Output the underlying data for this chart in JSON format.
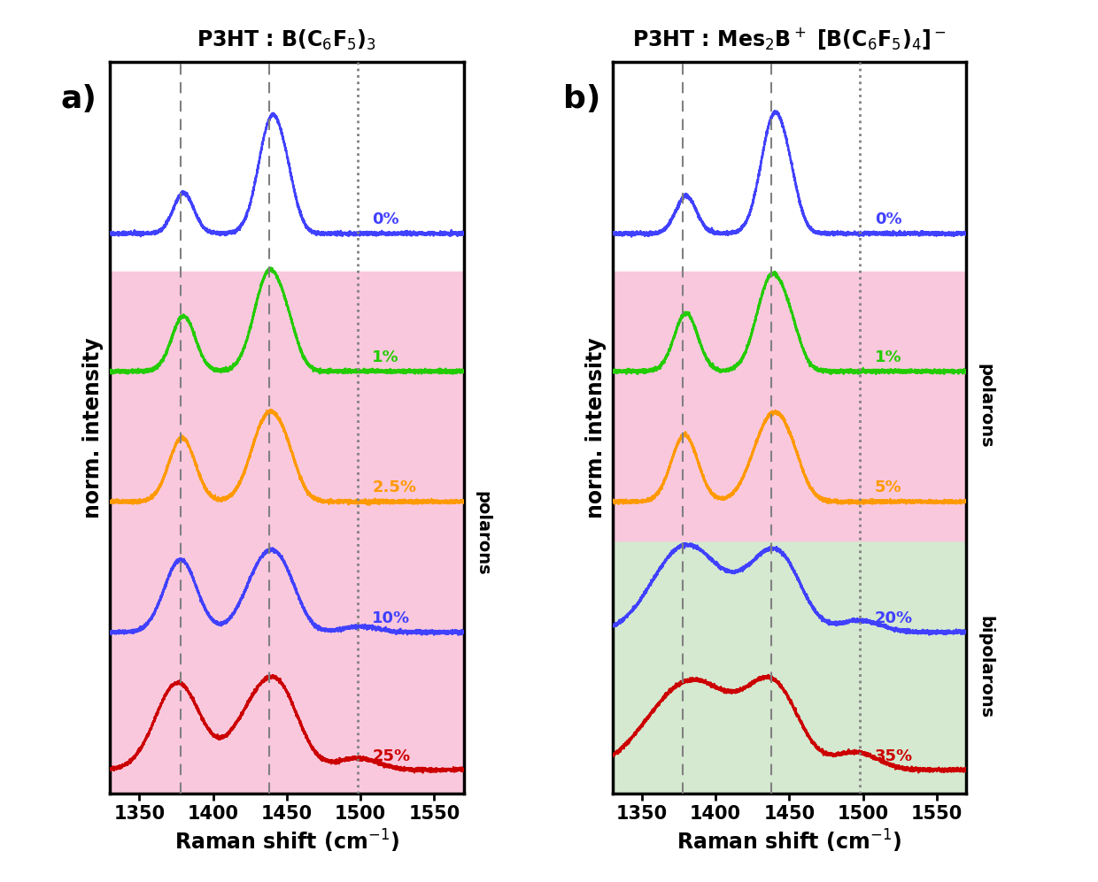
{
  "panel_a_title": "P3HT : B(C$_6$F$_5$)$_3$",
  "panel_b_title": "P3HT : Mes$_2$B$^+$ [B(C$_6$F$_5$)$_4$]$^-$",
  "xlabel": "Raman shift (cm$^{-1}$)",
  "ylabel": "norm. intensity",
  "x_min": 1330,
  "x_max": 1570,
  "xticks": [
    1350,
    1400,
    1450,
    1500,
    1550
  ],
  "vlines_dashed": [
    1378,
    1438
  ],
  "vline_dotted": [
    1498
  ],
  "panel_a_labels": [
    "0%",
    "1%",
    "2.5%",
    "10%",
    "25%"
  ],
  "panel_a_colors": [
    "#4040FF",
    "#22CC00",
    "#FF9900",
    "#4040FF",
    "#CC0000"
  ],
  "panel_b_labels": [
    "0%",
    "1%",
    "5%",
    "20%",
    "35%"
  ],
  "panel_b_colors": [
    "#4040FF",
    "#22CC00",
    "#FF9900",
    "#4040FF",
    "#CC0000"
  ],
  "panel_a_offsets": [
    3.8,
    2.85,
    1.95,
    1.05,
    0.1
  ],
  "panel_b_offsets": [
    3.8,
    2.85,
    1.95,
    1.05,
    0.1
  ],
  "pink_bg": "#F9C8DC",
  "green_bg": "#D5E8D0",
  "polaron_label": "polarons",
  "bipolaron_label": "bipolarons",
  "title_fontsize": 17,
  "label_fontsize": 26,
  "tick_fontsize": 15,
  "axis_label_fontsize": 17
}
